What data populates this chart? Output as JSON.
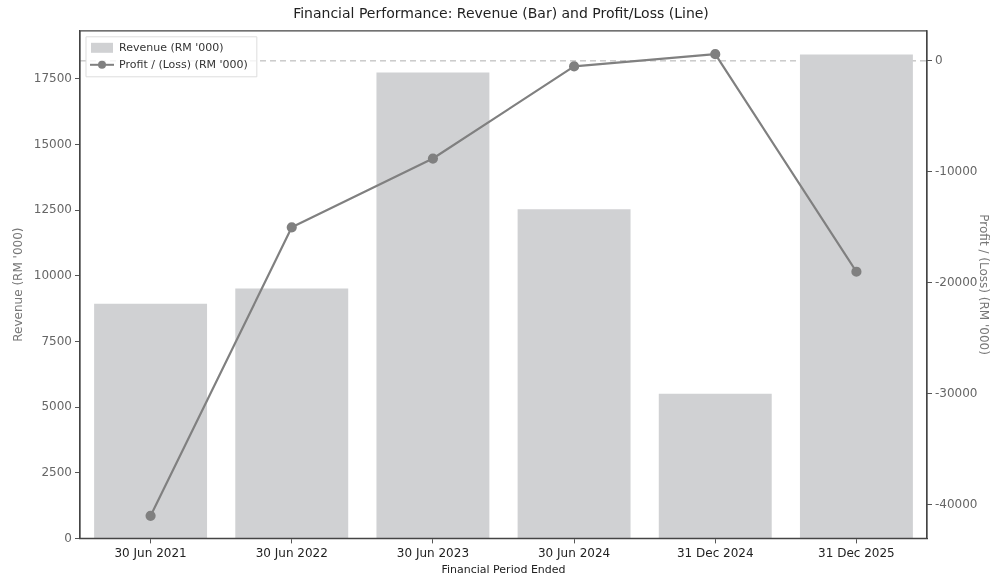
{
  "chart_data": {
    "type": "bar",
    "title": "Financial Performance: Revenue (Bar) and Profit/Loss (Line)",
    "xlabel": "Financial Period Ended",
    "ylabel": "Revenue (RM '000)",
    "y2label": "Profit / (Loss) (RM '000)",
    "categories": [
      "30 Jun 2021",
      "30 Jun 2022",
      "30 Jun 2023",
      "30 Jun 2024",
      "31 Dec 2024",
      "31 Dec 2025"
    ],
    "series": [
      {
        "name": "Revenue (RM '000)",
        "color": "#d0d1d3",
        "values": [
          8940,
          9520,
          17740,
          12530,
          5510,
          18430
        ]
      },
      {
        "name": "Profit / (Loss) (RM '000)",
        "type": "line",
        "axis": "y2",
        "color": "#808080",
        "marker": "circle",
        "line_style": "solid",
        "values": [
          -41000,
          -15000,
          -8800,
          -500,
          600,
          -19000
        ]
      }
    ],
    "ylim": [
      0,
      19330
    ],
    "yticks": [
      0,
      2500,
      5000,
      7500,
      10000,
      12500,
      15000,
      17500
    ],
    "y2lim": [
      -43030,
      2710
    ],
    "y2ticks": [
      -40000,
      -30000,
      -20000,
      -10000,
      0
    ],
    "ref_lines": [
      {
        "axis": "y2",
        "value": 0,
        "color": "#b0b0b0",
        "line_style": "dashed"
      }
    ],
    "grid": false,
    "legend": "top left"
  }
}
